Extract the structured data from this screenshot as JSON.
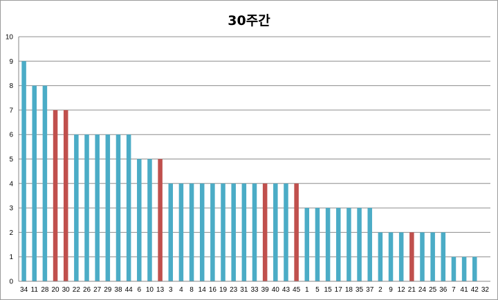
{
  "chart_data": {
    "type": "bar",
    "title": "30주간",
    "xlabel": "",
    "ylabel": "",
    "ylim": [
      0,
      10
    ],
    "yticks": [
      0,
      1,
      2,
      3,
      4,
      5,
      6,
      7,
      8,
      9,
      10
    ],
    "grid": true,
    "legend": "none",
    "categories": [
      "34",
      "11",
      "28",
      "20",
      "30",
      "22",
      "26",
      "27",
      "29",
      "38",
      "44",
      "6",
      "10",
      "13",
      "3",
      "4",
      "8",
      "14",
      "16",
      "19",
      "23",
      "31",
      "33",
      "39",
      "40",
      "43",
      "45",
      "1",
      "5",
      "15",
      "17",
      "18",
      "35",
      "37",
      "2",
      "9",
      "12",
      "21",
      "24",
      "25",
      "36",
      "7",
      "41",
      "42",
      "32"
    ],
    "values": [
      9,
      8,
      8,
      7,
      7,
      6,
      6,
      6,
      6,
      6,
      6,
      5,
      5,
      5,
      4,
      4,
      4,
      4,
      4,
      4,
      4,
      4,
      4,
      4,
      4,
      4,
      4,
      3,
      3,
      3,
      3,
      3,
      3,
      3,
      2,
      2,
      2,
      2,
      2,
      2,
      2,
      1,
      1,
      1,
      0
    ],
    "highlighted_categories": [
      "20",
      "30",
      "13",
      "39",
      "45",
      "21"
    ],
    "colors": {
      "bar": "#4bacc6",
      "highlight": "#c0504d",
      "grid": "#8c8c8c",
      "axis": "#868686"
    }
  }
}
